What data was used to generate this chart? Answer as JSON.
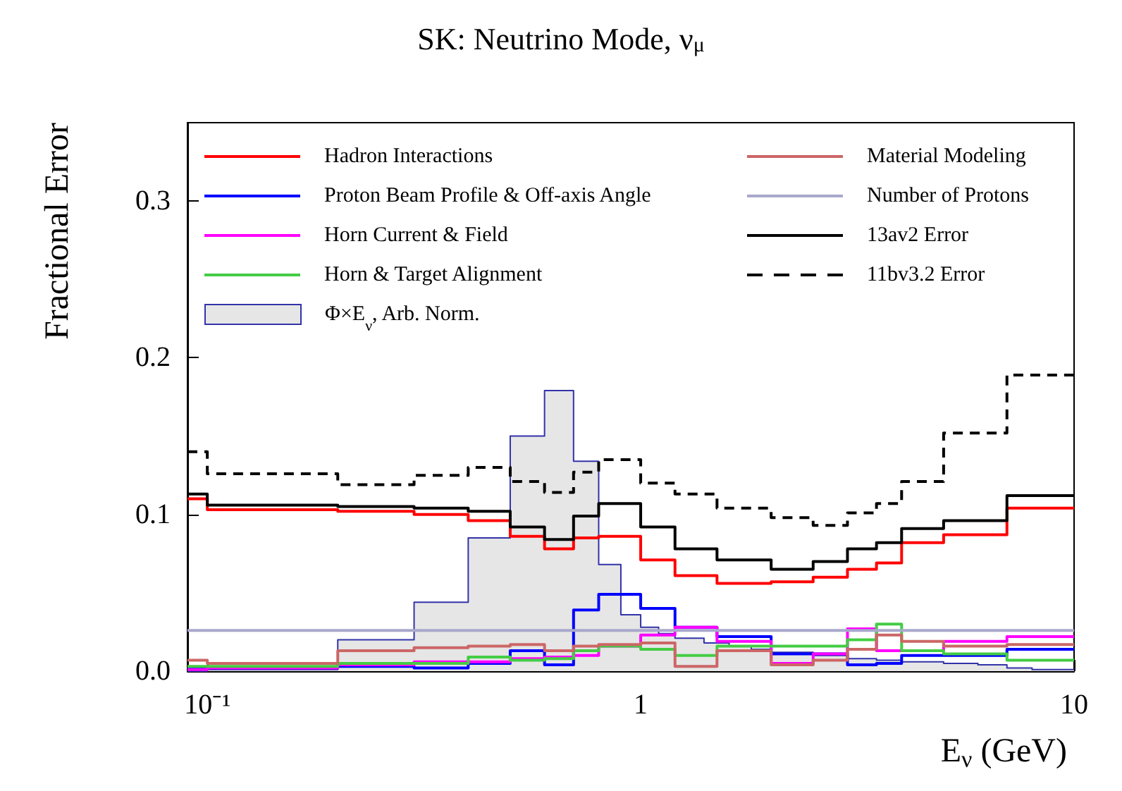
{
  "chart_data": {
    "type": "step",
    "title": "SK: Neutrino Mode, ν$_{μ}$",
    "xlabel": "E$_{ν}$ (GeV)",
    "ylabel": "Fractional Error",
    "log": "x",
    "grid": false,
    "legend": "top",
    "marker": "none",
    "x": [
      0.09,
      0.1,
      0.2,
      0.3,
      0.4,
      0.5,
      0.6,
      0.7,
      0.8,
      1.0,
      1.2,
      1.5,
      2.0,
      2.5,
      3.0,
      3.5,
      4.0,
      5.0,
      7.0,
      10
    ],
    "xlim": [
      0.09,
      10
    ],
    "xticks": [
      {
        "value": 0.1,
        "label": "10⁻¹"
      },
      1,
      10
    ],
    "ylim": [
      0,
      0.35
    ],
    "yticks": [
      {
        "value": 0,
        "label": "0.0"
      },
      {
        "value": 0.1,
        "label": "0.1"
      },
      {
        "value": 0.2,
        "label": "0.2"
      },
      {
        "value": 0.3,
        "label": "0.3"
      }
    ],
    "series": [
      {
        "name": "Hadron Interactions",
        "color": "#ff0000",
        "values": [
          0.11,
          0.103,
          0.102,
          0.1,
          0.096,
          0.086,
          0.078,
          0.085,
          0.086,
          0.071,
          0.061,
          0.056,
          0.057,
          0.06,
          0.065,
          0.069,
          0.082,
          0.087,
          0.104,
          0.104
        ]
      },
      {
        "name": "Proton Beam Profile & Off-axis Angle",
        "color": "#0000ff",
        "values": [
          0.002,
          0.002,
          0.003,
          0.002,
          0.005,
          0.013,
          0.004,
          0.039,
          0.049,
          0.04,
          0.028,
          0.022,
          0.011,
          0.011,
          0.004,
          0.005,
          0.01,
          0.01,
          0.014,
          0.014
        ]
      },
      {
        "name": "Horn Current & Field",
        "color": "#ff00ff",
        "values": [
          0.001,
          0.002,
          0.004,
          0.006,
          0.006,
          0.008,
          0.009,
          0.01,
          0.016,
          0.023,
          0.028,
          0.019,
          0.005,
          0.011,
          0.027,
          0.013,
          0.013,
          0.019,
          0.022,
          0.022
        ]
      },
      {
        "name": "Horn & Target Alignment",
        "color": "#44cc44",
        "values": [
          0.003,
          0.003,
          0.005,
          0.005,
          0.009,
          0.007,
          0.008,
          0.013,
          0.016,
          0.014,
          0.01,
          0.016,
          0.016,
          0.016,
          0.02,
          0.03,
          0.013,
          0.011,
          0.007,
          0.007
        ]
      },
      {
        "name": "Φ×E$_{ν}$, Arb. Norm.",
        "type": "area",
        "color": "#e6e6e6",
        "x": [
          0.09,
          0.1,
          0.2,
          0.3,
          0.4,
          0.5,
          0.6,
          0.7,
          0.8,
          0.9,
          1.0,
          1.1,
          1.2,
          1.4,
          1.6,
          1.8,
          2.0,
          2.5,
          3.0,
          3.5,
          4.0,
          5.0,
          6.0,
          7.0,
          8.0,
          9.0,
          10
        ],
        "values": [
          0,
          0.001,
          0.02,
          0.044,
          0.085,
          0.15,
          0.179,
          0.134,
          0.068,
          0.036,
          0.028,
          0.024,
          0.021,
          0.018,
          0.016,
          0.014,
          0.012,
          0.01,
          0.008,
          0.007,
          0.006,
          0.005,
          0.004,
          0.002,
          0.001,
          0.001,
          0.001
        ]
      },
      {
        "name": "Material Modeling",
        "color": "#cc6666",
        "values": [
          0.007,
          0.005,
          0.013,
          0.015,
          0.016,
          0.017,
          0.013,
          0.016,
          0.017,
          0.018,
          0.003,
          0.013,
          0.004,
          0.007,
          0.014,
          0.023,
          0.019,
          0.016,
          0.017,
          0.017
        ]
      },
      {
        "name": "Number of Protons",
        "color": "#a8a8cc",
        "values": [
          0.026,
          0.026,
          0.026,
          0.026,
          0.026,
          0.026,
          0.026,
          0.026,
          0.026,
          0.026,
          0.026,
          0.026,
          0.026,
          0.026,
          0.026,
          0.026,
          0.026,
          0.026,
          0.026,
          0.026
        ]
      },
      {
        "name": "13av2 Error",
        "color": "#000000",
        "values": [
          0.113,
          0.106,
          0.105,
          0.104,
          0.102,
          0.092,
          0.084,
          0.099,
          0.107,
          0.092,
          0.078,
          0.071,
          0.065,
          0.07,
          0.078,
          0.082,
          0.091,
          0.096,
          0.112,
          0.112
        ]
      },
      {
        "name": "11bv3.2 Error",
        "color": "#000000",
        "line_style": "dashed",
        "values": [
          0.14,
          0.126,
          0.119,
          0.125,
          0.13,
          0.121,
          0.114,
          0.127,
          0.135,
          0.12,
          0.113,
          0.104,
          0.098,
          0.093,
          0.101,
          0.107,
          0.121,
          0.152,
          0.189,
          0.189
        ]
      }
    ]
  }
}
